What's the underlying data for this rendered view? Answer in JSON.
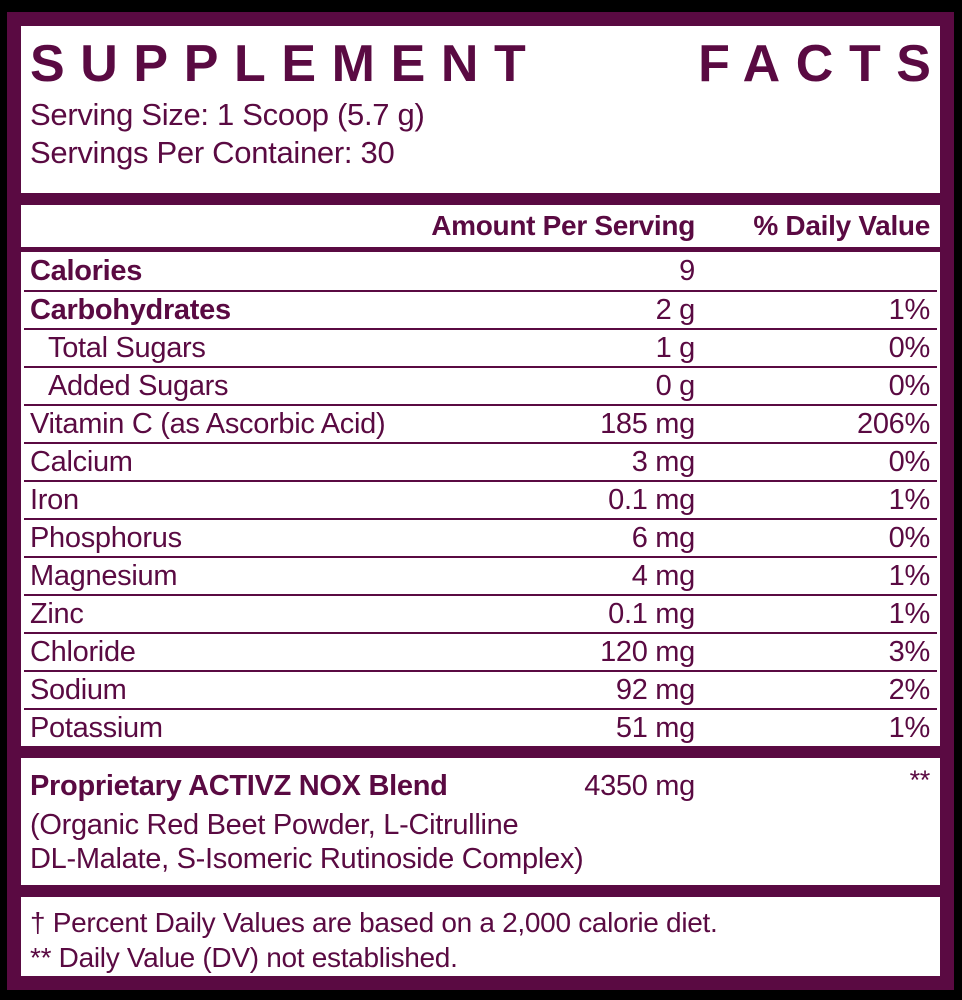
{
  "colors": {
    "brand": "#5A0A42",
    "background": "#000000",
    "paper": "#FFFFFF"
  },
  "header": {
    "title": "SUPPLEMENT FACTS",
    "title_words": {
      "first": "SUPPLEMENT",
      "second": "FACTS"
    },
    "serving_size": "Serving Size: 1 Scoop (5.7 g)",
    "servings_per_container": "Servings Per Container: 30"
  },
  "table": {
    "columns": {
      "amount": "Amount Per Serving",
      "dv": "% Daily Value"
    },
    "rows": [
      {
        "name": "Calories",
        "amount": "9",
        "dv": ""
      },
      {
        "name": "Carbohydrates",
        "amount": "2 g",
        "dv": "1%"
      },
      {
        "name": "Total Sugars",
        "amount": "1 g",
        "dv": "0%"
      },
      {
        "name": "Added Sugars",
        "amount": "0 g",
        "dv": "0%"
      },
      {
        "name": "Vitamin C (as Ascorbic Acid)",
        "amount": "185 mg",
        "dv": "206%"
      },
      {
        "name": "Calcium",
        "amount": "3 mg",
        "dv": "0%"
      },
      {
        "name": "Iron",
        "amount": "0.1 mg",
        "dv": "1%"
      },
      {
        "name": "Phosphorus",
        "amount": "6 mg",
        "dv": "0%"
      },
      {
        "name": "Magnesium",
        "amount": "4 mg",
        "dv": "1%"
      },
      {
        "name": "Zinc",
        "amount": "0.1 mg",
        "dv": "1%"
      },
      {
        "name": "Chloride",
        "amount": "120 mg",
        "dv": "3%"
      },
      {
        "name": "Sodium",
        "amount": "92 mg",
        "dv": "2%"
      },
      {
        "name": "Potassium",
        "amount": "51 mg",
        "dv": "1%"
      }
    ]
  },
  "blend": {
    "name": "Proprietary ACTIVZ NOX Blend",
    "amount": "4350 mg",
    "dv": "**",
    "ingredients_line1": "(Organic Red Beet Powder, L-Citrulline",
    "ingredients_line2": "DL-Malate, S-Isomeric Rutinoside Complex)"
  },
  "footnotes": [
    "† Percent Daily Values are based on a 2,000 calorie diet.",
    "** Daily Value (DV) not established."
  ]
}
